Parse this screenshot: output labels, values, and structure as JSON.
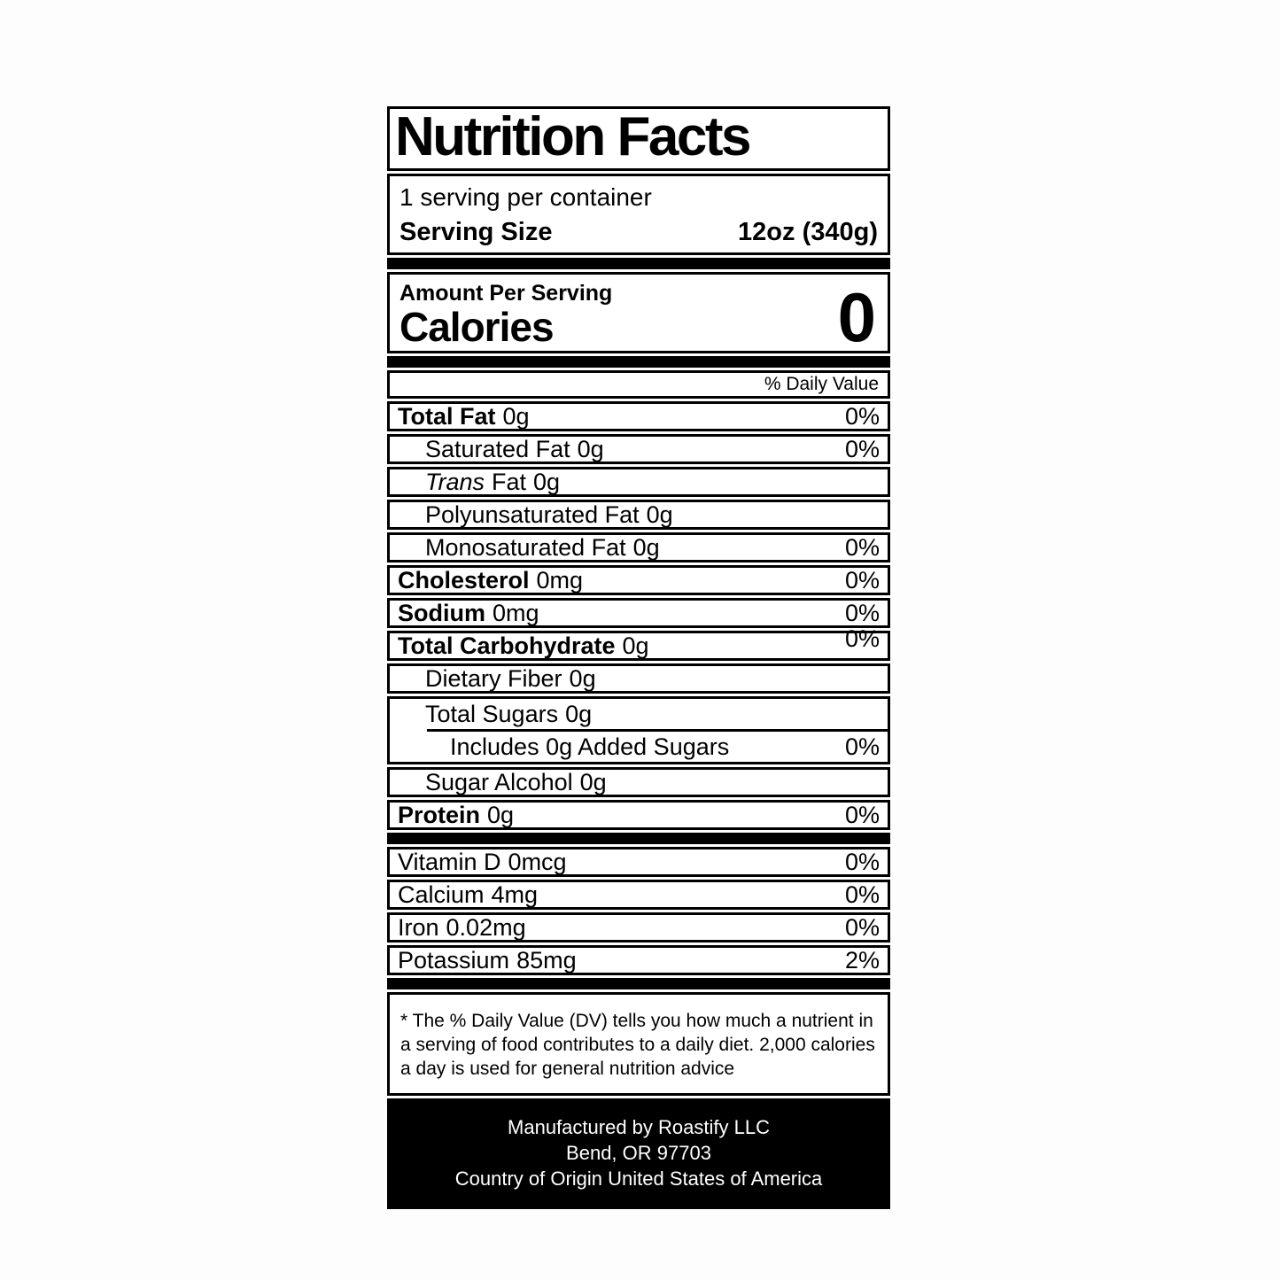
{
  "label": {
    "title": "Nutrition Facts",
    "servings_per_container": "1 serving per container",
    "serving_size": {
      "label": "Serving Size",
      "value": "12oz (340g)"
    },
    "amount_per_serving": "Amount Per Serving",
    "calories": {
      "label": "Calories",
      "value": "0"
    },
    "daily_value_header": "% Daily Value",
    "nutrients": [
      {
        "name": "Total Fat",
        "amount": "0g",
        "dv": "0%"
      },
      {
        "name": "Saturated Fat",
        "amount": "0g",
        "dv": "0%"
      },
      {
        "name_italic": "Trans",
        "name": "Fat",
        "amount": "0g",
        "dv": ""
      },
      {
        "name": "Polyunsaturated Fat",
        "amount": "0g",
        "dv": ""
      },
      {
        "name": "Monosaturated Fat",
        "amount": "0g",
        "dv": "0%"
      },
      {
        "name": "Cholesterol",
        "amount": "0mg",
        "dv": "0%"
      },
      {
        "name": "Sodium",
        "amount": "0mg",
        "dv": "0%"
      },
      {
        "name": "Total Carbohydrate",
        "amount": "0g",
        "dv": "0%"
      },
      {
        "name": "Dietary Fiber",
        "amount": "0g",
        "dv": ""
      },
      {
        "name": "Total Sugars",
        "amount": "0g",
        "dv": ""
      },
      {
        "name": "Includes 0g Added Sugars",
        "amount": "",
        "dv": "0%"
      },
      {
        "name": "Sugar Alcohol",
        "amount": "0g",
        "dv": ""
      },
      {
        "name": "Protein",
        "amount": "0g",
        "dv": "0%"
      }
    ],
    "vitamins": [
      {
        "name": "Vitamin D",
        "amount": "0mcg",
        "dv": "0%"
      },
      {
        "name": "Calcium",
        "amount": "4mg",
        "dv": "0%"
      },
      {
        "name": "Iron",
        "amount": "0.02mg",
        "dv": "0%"
      },
      {
        "name": "Potassium",
        "amount": "85mg",
        "dv": "2%"
      }
    ],
    "footnote_lines": [
      "* The % Daily Value (DV) tells you how much a nutrient in",
      "a serving of food contributes to a daily diet. 2,000 calories",
      "a day is used for general nutrition advice"
    ],
    "footer_lines": [
      "Manufactured by Roastify LLC",
      "Bend, OR 97703",
      "Country of Origin United States of America"
    ],
    "colors": {
      "ink": "#000000",
      "paper": "#ffffff"
    }
  }
}
